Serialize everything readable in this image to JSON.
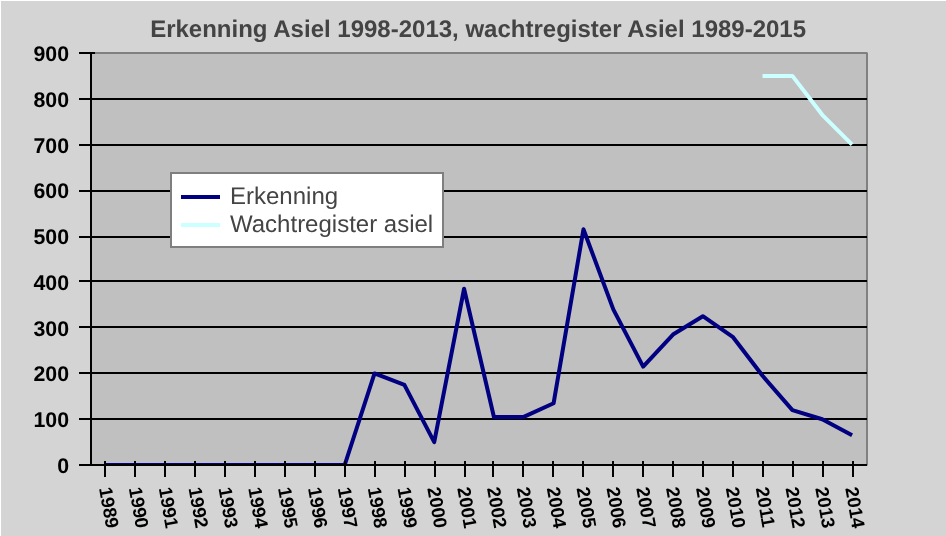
{
  "chart_data": {
    "type": "line",
    "title": "Erkenning Asiel 1998-2013, wachtregister Asiel 1989-2015",
    "categories": [
      "1989",
      "1990",
      "1991",
      "1992",
      "1993",
      "1994",
      "1995",
      "1996",
      "1997",
      "1998",
      "1999",
      "2000",
      "2001",
      "2002",
      "2003",
      "2004",
      "2005",
      "2006",
      "2007",
      "2008",
      "2009",
      "2010",
      "2011",
      "2012",
      "2013",
      "2014"
    ],
    "series": [
      {
        "name": "Erkenning",
        "color": "#000080",
        "values": [
          0,
          0,
          0,
          0,
          0,
          0,
          0,
          0,
          0,
          200,
          175,
          50,
          385,
          105,
          105,
          135,
          515,
          340,
          215,
          285,
          325,
          280,
          195,
          120,
          100,
          65
        ]
      },
      {
        "name": "Wachtregister asiel",
        "color": "#ccffff",
        "values": [
          null,
          null,
          null,
          null,
          null,
          null,
          null,
          null,
          null,
          null,
          null,
          null,
          null,
          null,
          null,
          null,
          null,
          null,
          null,
          null,
          null,
          null,
          850,
          850,
          765,
          700
        ]
      }
    ],
    "ylim": [
      0,
      900
    ],
    "yticks": [
      0,
      100,
      200,
      300,
      400,
      500,
      600,
      700,
      800,
      900
    ],
    "grid": "y",
    "legend": "top left",
    "marker": "none",
    "line_style": "solid"
  }
}
